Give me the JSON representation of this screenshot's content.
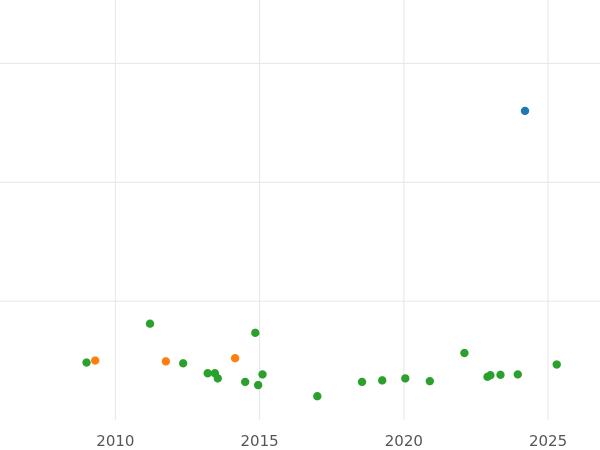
{
  "chart_data": {
    "type": "scatter",
    "title": "",
    "xlabel": "",
    "ylabel": "",
    "grid": true,
    "legend": "none",
    "xlim": [
      2006.0,
      2026.8
    ],
    "ylim": [
      0,
      10.6
    ],
    "xticks": [
      2010,
      2015,
      2020,
      2025
    ],
    "xtick_labels": [
      "2010",
      "2015",
      "2020",
      "2025"
    ],
    "ygrid_values": [
      3,
      6,
      9
    ],
    "series": [
      {
        "color": "#1f77b4",
        "points": [
          {
            "x": 2024.2,
            "y": 7.8
          }
        ]
      },
      {
        "color": "#ff7f0e",
        "points": [
          {
            "x": 2009.3,
            "y": 1.5
          },
          {
            "x": 2011.75,
            "y": 1.48
          },
          {
            "x": 2014.15,
            "y": 1.56
          }
        ]
      },
      {
        "color": "#2ca02c",
        "points": [
          {
            "x": 2009.0,
            "y": 1.45
          },
          {
            "x": 2011.2,
            "y": 2.43
          },
          {
            "x": 2012.35,
            "y": 1.43
          },
          {
            "x": 2013.2,
            "y": 1.18
          },
          {
            "x": 2013.45,
            "y": 1.18
          },
          {
            "x": 2013.55,
            "y": 1.05
          },
          {
            "x": 2014.5,
            "y": 0.96
          },
          {
            "x": 2014.85,
            "y": 2.2
          },
          {
            "x": 2014.95,
            "y": 0.88
          },
          {
            "x": 2015.1,
            "y": 1.15
          },
          {
            "x": 2017.0,
            "y": 0.6
          },
          {
            "x": 2018.55,
            "y": 0.96
          },
          {
            "x": 2019.25,
            "y": 1.0
          },
          {
            "x": 2020.05,
            "y": 1.05
          },
          {
            "x": 2020.9,
            "y": 0.98
          },
          {
            "x": 2022.1,
            "y": 1.69
          },
          {
            "x": 2022.9,
            "y": 1.09
          },
          {
            "x": 2023.0,
            "y": 1.13
          },
          {
            "x": 2023.35,
            "y": 1.14
          },
          {
            "x": 2023.95,
            "y": 1.15
          },
          {
            "x": 2025.3,
            "y": 1.4
          }
        ]
      }
    ]
  }
}
